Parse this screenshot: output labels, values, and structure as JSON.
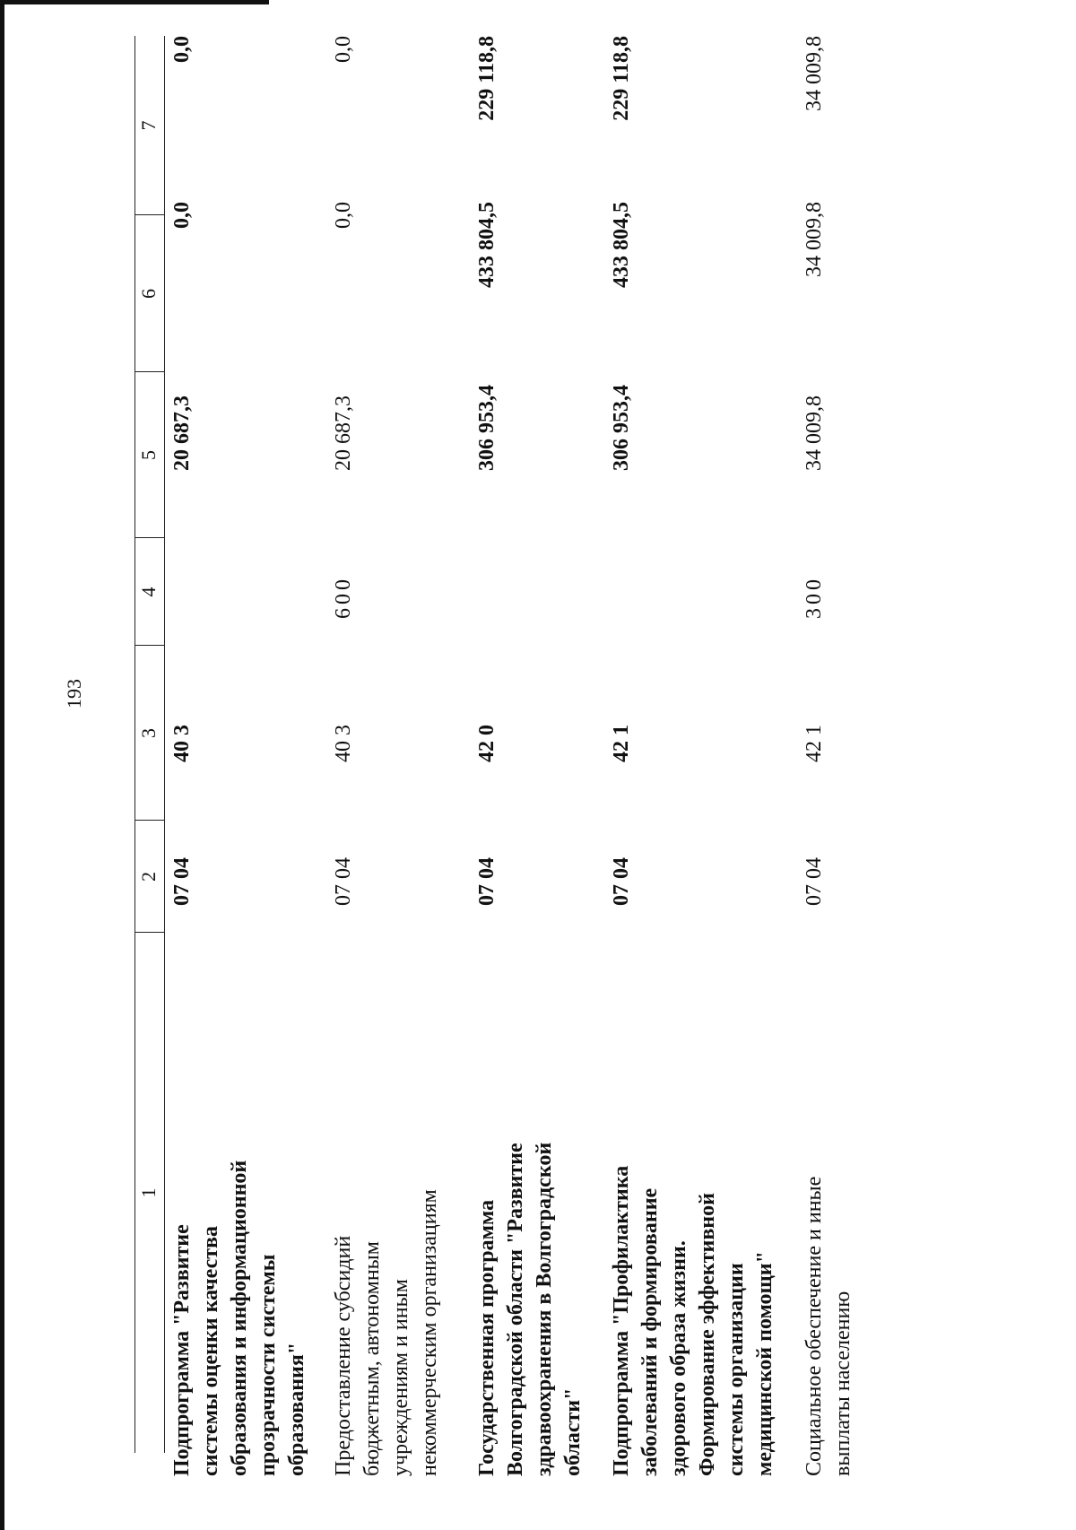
{
  "page_number": "193",
  "table": {
    "header": [
      "1",
      "2",
      "3",
      "4",
      "5",
      "6",
      "7"
    ],
    "rows": [
      {
        "bold": true,
        "name_lines": [
          "Подпрограмма \"Развитие",
          "системы оценки качества",
          "образования и информационной",
          "прозрачности системы",
          "образования\""
        ],
        "c2": "07 04",
        "c3": "40 3",
        "c4": "",
        "c5": "20 687,3",
        "c6": "0,0",
        "c7": "0,0"
      },
      {
        "bold": false,
        "name_lines": [
          "Предоставление субсидий",
          "бюджетным, автономным",
          "учреждениям и иным",
          "некоммерческим организациям"
        ],
        "c2": "07 04",
        "c3": "40 3",
        "c4": "600",
        "c5": "20 687,3",
        "c6": "0,0",
        "c7": "0,0"
      },
      {
        "bold": true,
        "name_lines": [
          "Государственная программа",
          "Волгоградской области \"Развитие",
          "здравоохранения в Волгоградской",
          "области\""
        ],
        "c2": "07 04",
        "c3": "42 0",
        "c4": "",
        "c5": "306 953,4",
        "c6": "433 804,5",
        "c7": "229 118,8"
      },
      {
        "bold": true,
        "name_lines": [
          "Подпрограмма \"Профилактика",
          "заболеваний и формирование",
          "здорового образа жизни.",
          "Формирование эффективной",
          "системы организации",
          "медицинской помощи\""
        ],
        "c2": "07 04",
        "c3": "42 1",
        "c4": "",
        "c5": "306 953,4",
        "c6": "433 804,5",
        "c7": "229 118,8"
      },
      {
        "bold": false,
        "name_lines": [
          "Социальное обеспечение и иные",
          "выплаты населению"
        ],
        "c2": "07 04",
        "c3": "42 1",
        "c4": "300",
        "c5": "34 009,8",
        "c6": "34 009,8",
        "c7": "34 009,8"
      }
    ]
  }
}
